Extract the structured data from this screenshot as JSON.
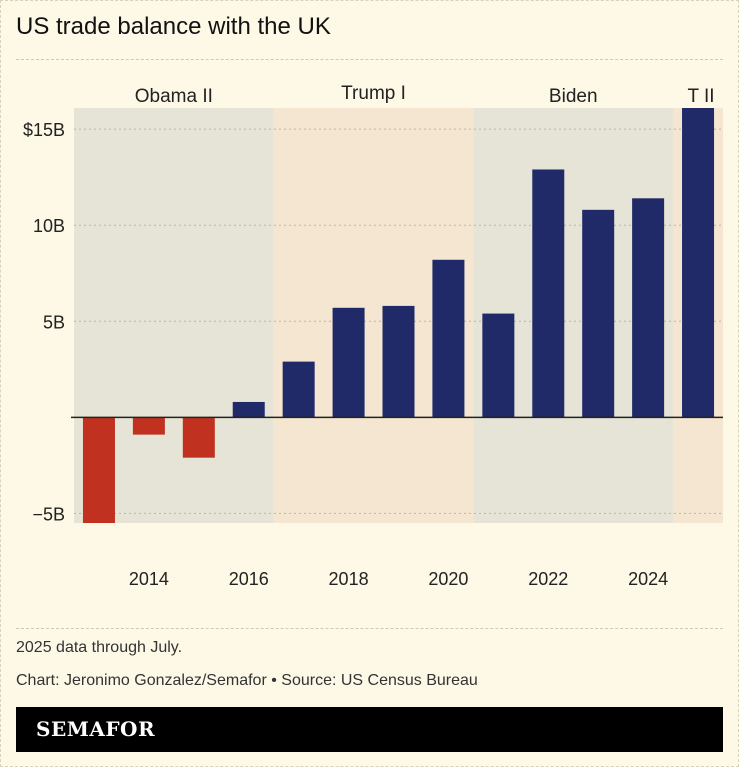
{
  "title": "US trade balance with the UK",
  "chart_data": {
    "type": "bar",
    "categories": [
      "2013",
      "2014",
      "2015",
      "2016",
      "2017",
      "2018",
      "2019",
      "2020",
      "2021",
      "2022",
      "2023",
      "2024",
      "2025"
    ],
    "values": [
      -5.5,
      -0.9,
      -2.1,
      0.8,
      2.9,
      5.7,
      5.8,
      8.2,
      5.4,
      12.9,
      10.8,
      11.4,
      16.1
    ],
    "ylim": [
      -5.5,
      16.1
    ],
    "yticks": [
      {
        "v": 15,
        "label": "$15B"
      },
      {
        "v": 10,
        "label": "10B"
      },
      {
        "v": 5,
        "label": "5B"
      },
      {
        "v": -5,
        "label": "−5B"
      }
    ],
    "xticks": [
      "2014",
      "2016",
      "2018",
      "2020",
      "2022",
      "2024"
    ],
    "grid": true,
    "colors": {
      "positive": "#212a68",
      "negative": "#c0321f",
      "band_dem": "#e6e4d6",
      "band_rep": "#f4e6d0"
    },
    "periods": [
      {
        "label": "Obama II",
        "from": 2013,
        "to": 2016,
        "party": "dem"
      },
      {
        "label": "Trump I",
        "from": 2017,
        "to": 2020,
        "party": "rep"
      },
      {
        "label": "Biden",
        "from": 2021,
        "to": 2024,
        "party": "dem"
      },
      {
        "label": "T II",
        "from": 2025,
        "to": 2025,
        "party": "rep"
      }
    ]
  },
  "notes": {
    "footnote": "2025 data through July.",
    "credit": "Chart: Jeronimo Gonzalez/Semafor • Source: US Census Bureau"
  },
  "logo": "SEMAFOR"
}
